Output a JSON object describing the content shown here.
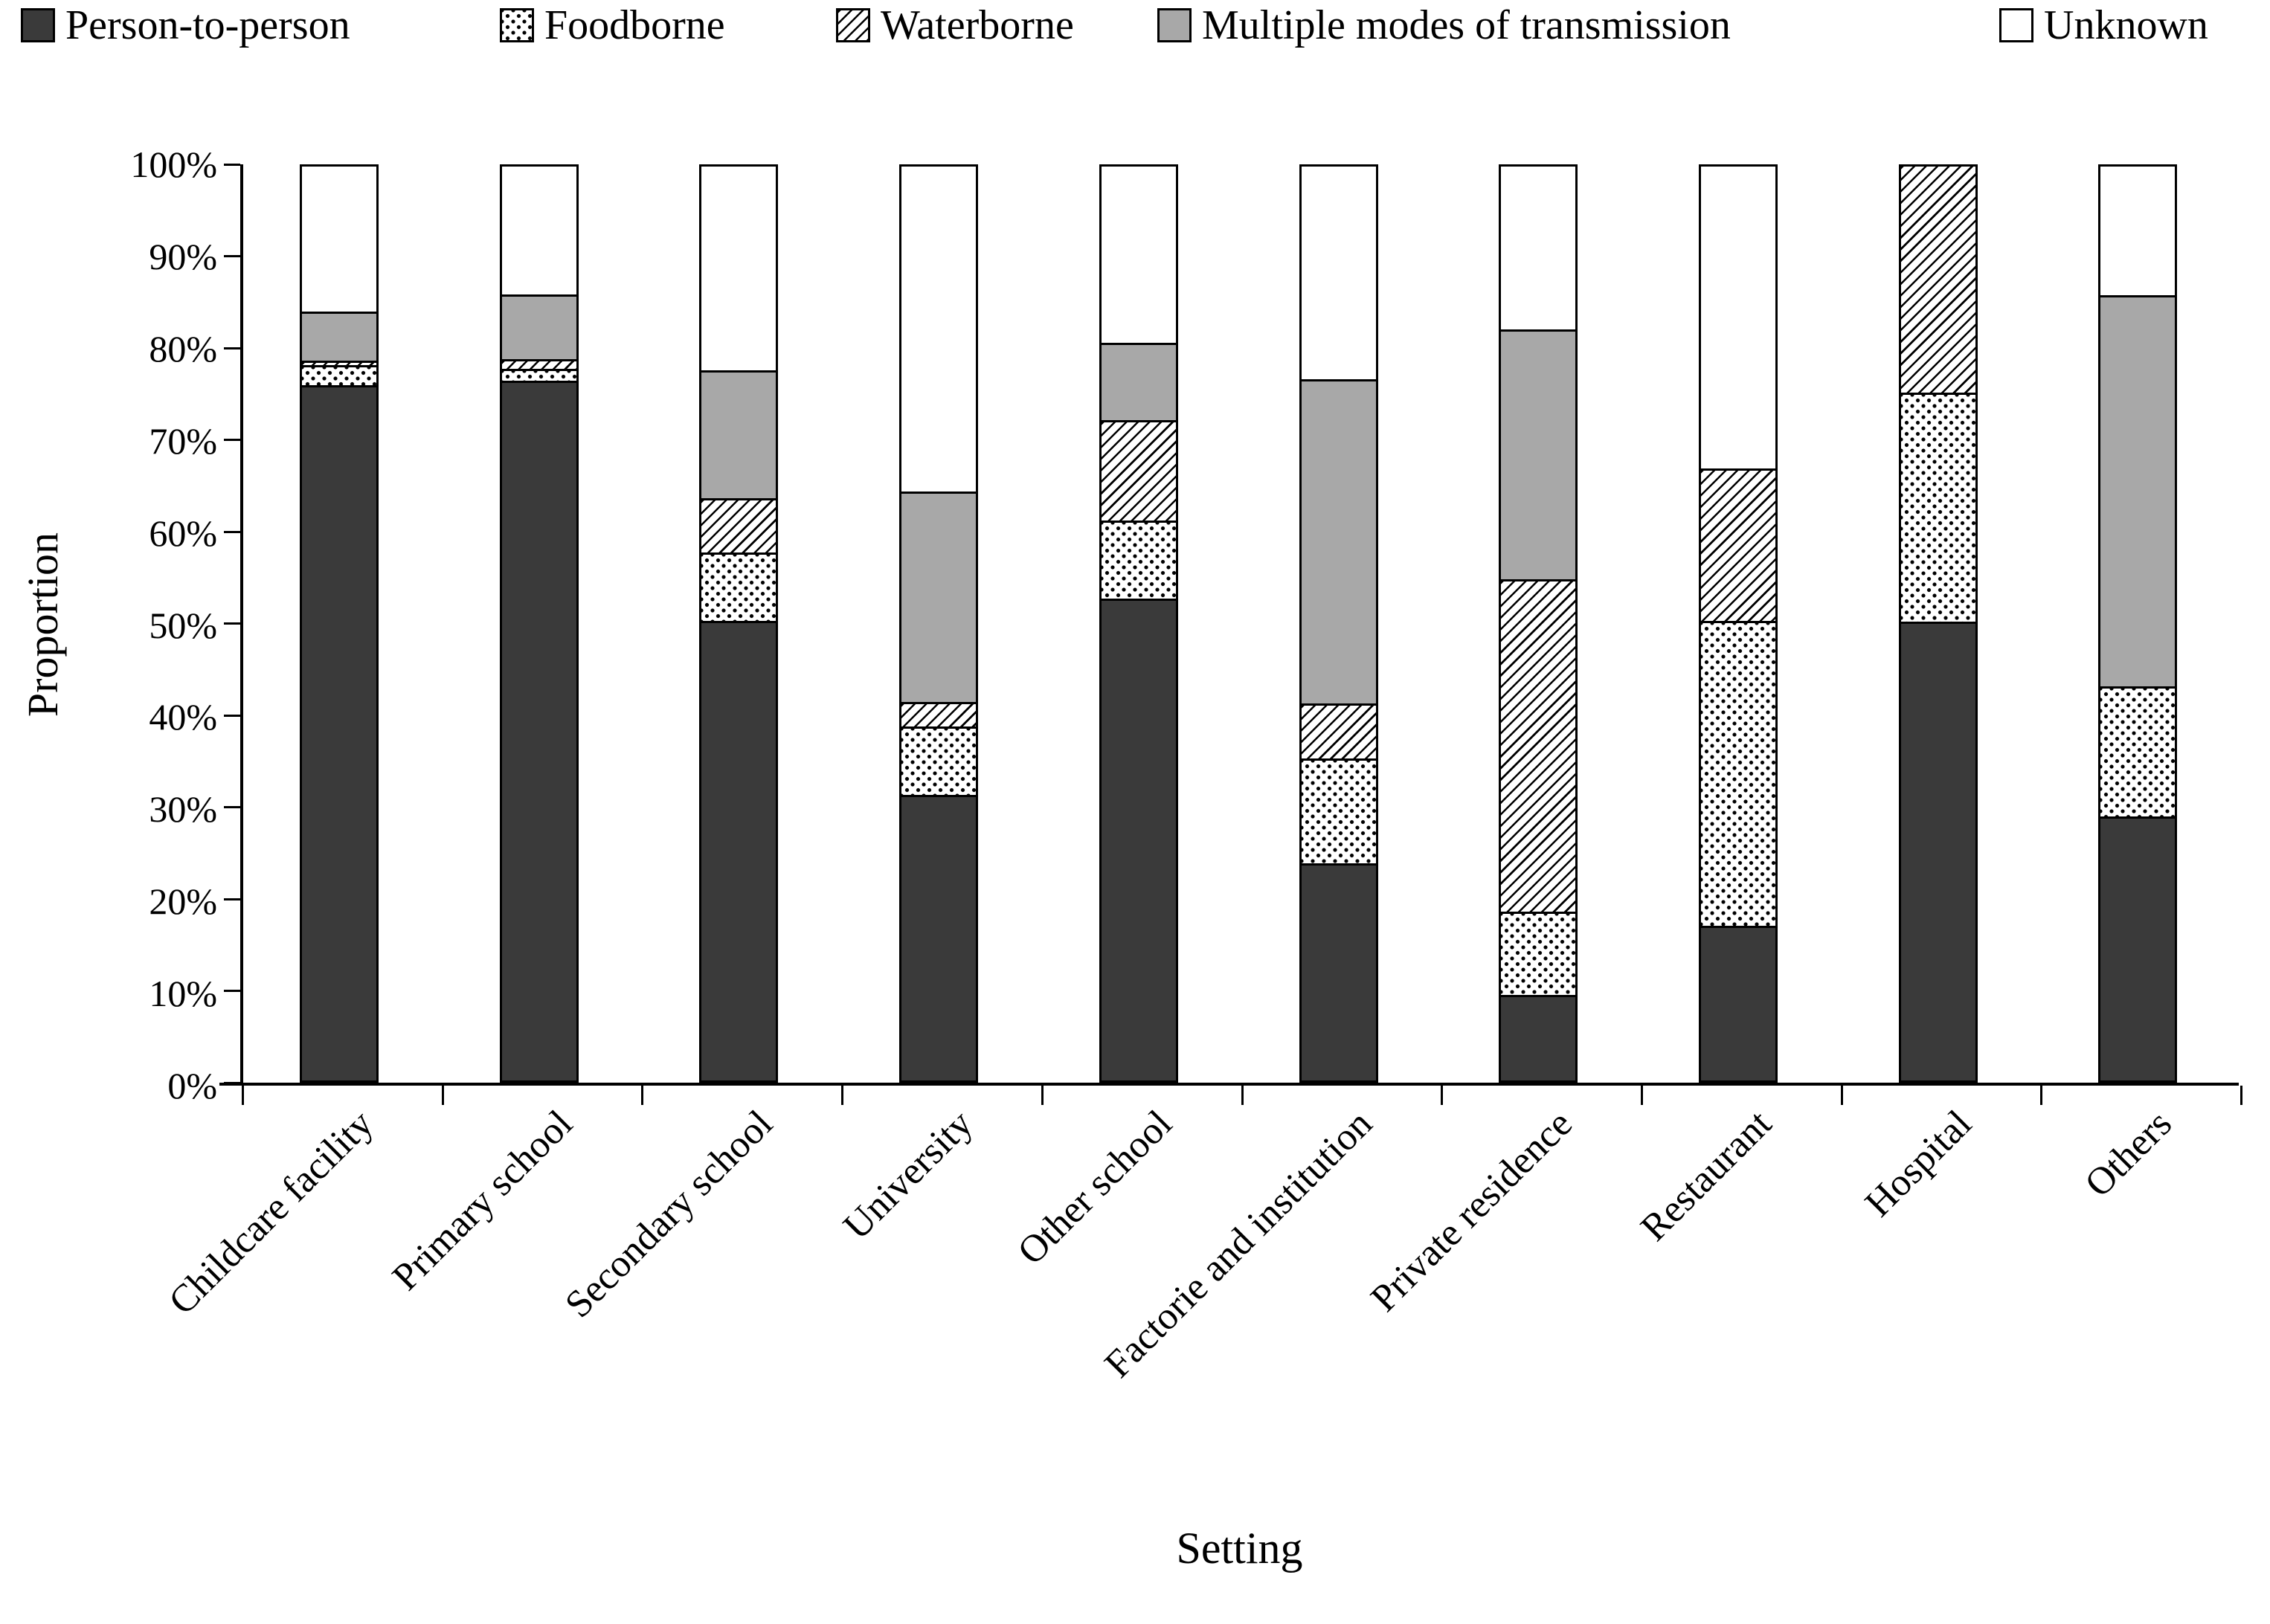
{
  "axes": {
    "y_title": "Proportion",
    "x_title": "Setting",
    "y_ticks": [
      "100%",
      "90%",
      "80%",
      "70%",
      "60%",
      "50%",
      "40%",
      "30%",
      "20%",
      "10%",
      "0%"
    ]
  },
  "colors": {
    "dark": "#3a3a3a",
    "gray": "#a8a8a8",
    "white": "#ffffff",
    "line": "#000000"
  },
  "chart_data": {
    "type": "bar",
    "stacked": true,
    "percent_stacked": true,
    "title": "",
    "xlabel": "Setting",
    "ylabel": "Proportion",
    "ylim": [
      0,
      100
    ],
    "grid": false,
    "legend_position": "top",
    "categories": [
      "Childcare facility",
      "Primary school",
      "Secondary school",
      "University",
      "Other school",
      "Factorie and institution",
      "Private residence",
      "Restaurant",
      "Hospital",
      "Others"
    ],
    "series": [
      {
        "name": "Person-to-person",
        "swatch": "solid-dark",
        "values": [
          75.8,
          76.3,
          50.0,
          31.0,
          52.5,
          23.5,
          9.1,
          16.7,
          50.0,
          28.6
        ]
      },
      {
        "name": "Foodborne",
        "swatch": "dots",
        "values": [
          2.2,
          1.3,
          7.5,
          7.5,
          8.5,
          11.5,
          9.1,
          33.3,
          25.0,
          14.3
        ]
      },
      {
        "name": "Waterborne",
        "swatch": "hatch",
        "values": [
          0.5,
          1.1,
          6.0,
          2.7,
          11.0,
          6.0,
          36.4,
          16.7,
          25.0,
          0.0
        ]
      },
      {
        "name": "Multiple modes of transmission",
        "swatch": "solid-gray",
        "values": [
          5.4,
          7.1,
          14.0,
          23.0,
          8.5,
          35.5,
          27.3,
          0.0,
          0.0,
          42.8
        ]
      },
      {
        "name": "Unknown",
        "swatch": "solid-white",
        "values": [
          16.1,
          14.2,
          22.5,
          35.8,
          19.5,
          23.5,
          18.1,
          33.3,
          0.0,
          14.3
        ]
      }
    ]
  }
}
